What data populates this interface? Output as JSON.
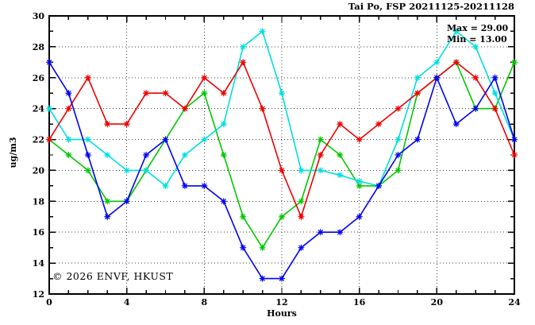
{
  "chart_data": {
    "type": "line",
    "title": "Tai Po, FSP 20211125-20211128",
    "xlabel": "Hours",
    "ylabel": "ug/m3",
    "xlim": [
      0,
      24
    ],
    "ylim": [
      12,
      30
    ],
    "x_ticks": [
      0,
      4,
      8,
      12,
      16,
      20,
      24
    ],
    "y_ticks": [
      12,
      14,
      16,
      18,
      20,
      22,
      24,
      26,
      28,
      30
    ],
    "x_minor_every": 1,
    "y_minor_every": 1,
    "grid": true,
    "legend_position": "none",
    "annotations": {
      "max_label": "Max = 29.00",
      "min_label": "Min = 13.00",
      "max": 29.0,
      "min": 13.0
    },
    "x": [
      0,
      1,
      2,
      3,
      4,
      5,
      6,
      7,
      8,
      9,
      10,
      11,
      12,
      13,
      14,
      15,
      16,
      17,
      18,
      19,
      20,
      21,
      22,
      23,
      24
    ],
    "series": [
      {
        "name": "green",
        "color": "#00c800",
        "values": [
          22,
          21,
          20,
          18,
          18,
          20,
          22,
          24,
          25,
          21,
          17,
          15,
          17,
          18,
          22,
          21,
          19,
          19,
          20,
          25,
          26,
          27,
          24,
          24,
          27
        ]
      },
      {
        "name": "cyan",
        "color": "#00dede",
        "values": [
          24,
          22,
          22,
          21,
          20,
          20,
          19,
          21,
          22,
          23,
          28,
          29,
          25,
          20,
          20,
          19.7,
          19.3,
          19,
          22,
          26,
          27,
          29,
          28,
          25,
          22
        ]
      },
      {
        "name": "red",
        "color": "#ee0000",
        "values": [
          22,
          24,
          26,
          23,
          23,
          25,
          25,
          24,
          26,
          25,
          27,
          24,
          20,
          17,
          21,
          23,
          22,
          23,
          24,
          25,
          26,
          27,
          26,
          24,
          21
        ]
      },
      {
        "name": "blue",
        "color": "#0000f0",
        "values": [
          27,
          25,
          21,
          17,
          18,
          21,
          22,
          19,
          19,
          18,
          15,
          13,
          13,
          15,
          16,
          16,
          17,
          19,
          21,
          22,
          26,
          23,
          24,
          26,
          22
        ]
      }
    ]
  },
  "watermark": {
    "text": "© 2026 ENVF, HKUST",
    "color": "#d2d2d2"
  }
}
